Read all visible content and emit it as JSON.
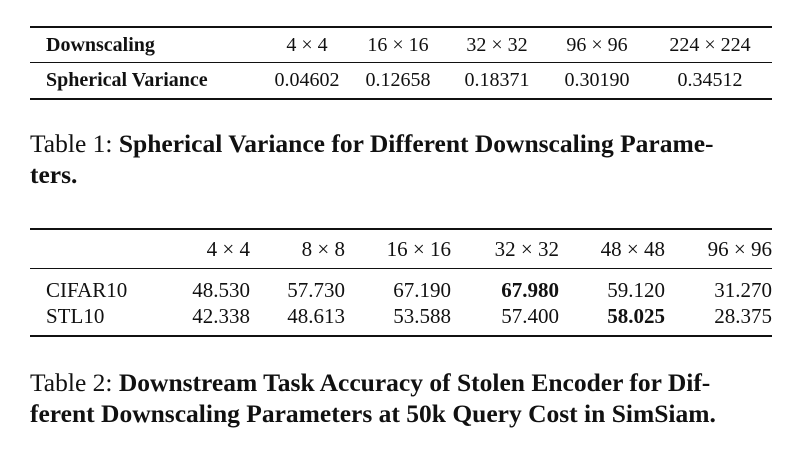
{
  "table1": {
    "header_label": "Downscaling",
    "columns": [
      "4 × 4",
      "16 × 16",
      "32 × 32",
      "96 × 96",
      "224 × 224"
    ],
    "row_label": "Spherical Variance",
    "values": [
      "0.04602",
      "0.12658",
      "0.18371",
      "0.30190",
      "0.34512"
    ]
  },
  "caption1": {
    "prefix": "Table 1: ",
    "title_line1": "Spherical Variance for Different Downscaling Parame-",
    "title_line2": "ters."
  },
  "table2": {
    "columns": [
      "4 × 4",
      "8 × 8",
      "16 × 16",
      "32 × 32",
      "48 × 48",
      "96 × 96"
    ],
    "rows": [
      {
        "label": "CIFAR10",
        "values": [
          "48.530",
          "57.730",
          "67.190",
          "67.980",
          "59.120",
          "31.270"
        ],
        "best_index": 3
      },
      {
        "label": "STL10",
        "values": [
          "42.338",
          "48.613",
          "53.588",
          "57.400",
          "58.025",
          "28.375"
        ],
        "best_index": 4
      }
    ]
  },
  "caption2": {
    "prefix": "Table 2: ",
    "title_line1": "Downstream Task Accuracy of Stolen Encoder for Dif-",
    "title_line2": "ferent Downscaling Parameters at 50k Query Cost in SimSiam."
  }
}
